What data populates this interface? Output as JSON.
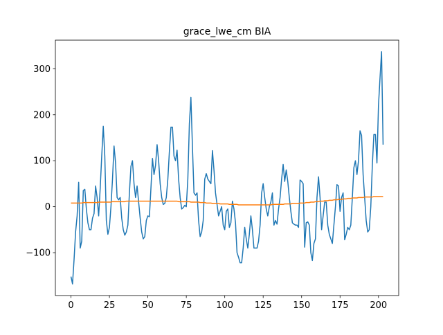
{
  "chart_data": {
    "type": "line",
    "title": "grace_lwe_cm BIA",
    "x": [
      0,
      1,
      2,
      3,
      4,
      5,
      6,
      7,
      8,
      9,
      10,
      11,
      12,
      13,
      14,
      15,
      16,
      17,
      18,
      19,
      20,
      21,
      22,
      23,
      24,
      25,
      26,
      27,
      28,
      29,
      30,
      31,
      32,
      33,
      34,
      35,
      36,
      37,
      38,
      39,
      40,
      41,
      42,
      43,
      44,
      45,
      46,
      47,
      48,
      49,
      50,
      51,
      52,
      53,
      54,
      55,
      56,
      57,
      58,
      59,
      60,
      61,
      62,
      63,
      64,
      65,
      66,
      67,
      68,
      69,
      70,
      71,
      72,
      73,
      74,
      75,
      76,
      77,
      78,
      79,
      80,
      81,
      82,
      83,
      84,
      85,
      86,
      87,
      88,
      89,
      90,
      91,
      92,
      93,
      94,
      95,
      96,
      97,
      98,
      99,
      100,
      101,
      102,
      103,
      104,
      105,
      106,
      107,
      108,
      109,
      110,
      111,
      112,
      113,
      114,
      115,
      116,
      117,
      118,
      119,
      120,
      121,
      122,
      123,
      124,
      125,
      126,
      127,
      128,
      129,
      130,
      131,
      132,
      133,
      134,
      135,
      136,
      137,
      138,
      139,
      140,
      141,
      142,
      143,
      144,
      145,
      146,
      147,
      148,
      149,
      150,
      151,
      152,
      153,
      154,
      155,
      156,
      157,
      158,
      159,
      160,
      161,
      162,
      163,
      164,
      165,
      166,
      167,
      168,
      169,
      170,
      171,
      172,
      173,
      174,
      175,
      176,
      177,
      178,
      179,
      180,
      181,
      182,
      183,
      184,
      185,
      186,
      187,
      188,
      189,
      190,
      191,
      192,
      193,
      194,
      195,
      196,
      197,
      198,
      199,
      200,
      201,
      202,
      203
    ],
    "series": [
      {
        "color": "#1f77b4",
        "values": [
          -152,
          -168,
          -115,
          -55,
          -20,
          53,
          -90,
          -75,
          35,
          38,
          -5,
          -35,
          -50,
          -50,
          -25,
          -15,
          45,
          20,
          -20,
          40,
          110,
          175,
          110,
          -30,
          -60,
          -45,
          0,
          60,
          132,
          95,
          20,
          15,
          20,
          -25,
          -50,
          -62,
          -55,
          -40,
          30,
          88,
          100,
          50,
          20,
          45,
          10,
          -25,
          -55,
          -70,
          -65,
          -30,
          -20,
          -22,
          40,
          105,
          70,
          90,
          135,
          100,
          50,
          20,
          5,
          7,
          20,
          60,
          120,
          173,
          173,
          110,
          100,
          123,
          60,
          20,
          -5,
          -2,
          3,
          0,
          60,
          180,
          238,
          130,
          30,
          25,
          30,
          -30,
          -65,
          -55,
          -30,
          60,
          72,
          60,
          55,
          50,
          122,
          80,
          30,
          5,
          -20,
          -10,
          0,
          -40,
          -50,
          -10,
          -5,
          -45,
          -35,
          12,
          -5,
          -35,
          -100,
          -110,
          -122,
          -122,
          -90,
          -45,
          -70,
          -90,
          -60,
          -20,
          -50,
          -90,
          -90,
          -90,
          -75,
          -40,
          30,
          50,
          20,
          -5,
          -20,
          0,
          10,
          30,
          -40,
          -30,
          -38,
          -5,
          20,
          60,
          92,
          55,
          80,
          55,
          20,
          -10,
          -35,
          -38,
          -40,
          -40,
          -45,
          58,
          55,
          50,
          -88,
          -35,
          -33,
          -40,
          -100,
          -117,
          -80,
          -70,
          20,
          65,
          20,
          -50,
          -20,
          10,
          10,
          -40,
          -60,
          -70,
          -80,
          -40,
          0,
          48,
          45,
          -10,
          20,
          30,
          -72,
          -60,
          -45,
          -50,
          -40,
          20,
          85,
          100,
          70,
          100,
          165,
          155,
          70,
          20,
          -30,
          -55,
          -50,
          0,
          90,
          157,
          157,
          95,
          220,
          280,
          337,
          135
        ]
      },
      {
        "color": "#ff7f0e",
        "values": [
          8,
          8,
          8,
          8,
          8,
          8,
          8,
          8,
          9,
          9,
          9,
          9,
          9,
          9,
          9,
          9,
          9,
          9,
          10,
          10,
          10,
          10,
          10,
          10,
          10,
          10,
          10,
          11,
          11,
          11,
          11,
          11,
          11,
          11,
          11,
          11,
          12,
          12,
          12,
          12,
          12,
          12,
          12,
          12,
          12,
          12,
          12,
          12,
          12,
          12,
          12,
          12,
          12,
          12,
          12,
          12,
          12,
          12,
          12,
          12,
          12,
          12,
          12,
          12,
          12,
          12,
          12,
          12,
          12,
          12,
          11,
          11,
          11,
          11,
          11,
          11,
          11,
          11,
          10,
          10,
          10,
          10,
          10,
          10,
          9,
          9,
          9,
          9,
          8,
          8,
          8,
          8,
          7,
          7,
          7,
          7,
          7,
          6,
          6,
          6,
          6,
          6,
          6,
          5,
          5,
          5,
          5,
          5,
          5,
          4,
          4,
          4,
          4,
          4,
          4,
          4,
          4,
          4,
          4,
          4,
          4,
          4,
          4,
          4,
          4,
          4,
          4,
          4,
          4,
          4,
          4,
          5,
          5,
          5,
          5,
          5,
          5,
          5,
          5,
          6,
          6,
          6,
          6,
          6,
          7,
          7,
          7,
          7,
          7,
          8,
          8,
          8,
          8,
          9,
          9,
          9,
          10,
          10,
          10,
          11,
          11,
          11,
          12,
          12,
          12,
          13,
          13,
          13,
          14,
          14,
          14,
          15,
          15,
          15,
          16,
          16,
          16,
          17,
          17,
          17,
          18,
          18,
          18,
          19,
          19,
          19,
          19,
          20,
          20,
          20,
          20,
          21,
          21,
          21,
          21,
          21,
          21,
          22,
          22,
          22,
          22,
          22,
          22,
          22
        ]
      }
    ],
    "xlim": [
      -10.15,
      213.15
    ],
    "xticks": [
      0,
      25,
      50,
      75,
      100,
      125,
      150,
      175,
      200
    ],
    "ylim": [
      -193.25,
      362.25
    ],
    "yticks": [
      {
        "value": -100,
        "label": "−100"
      },
      0,
      100,
      200,
      300
    ]
  }
}
